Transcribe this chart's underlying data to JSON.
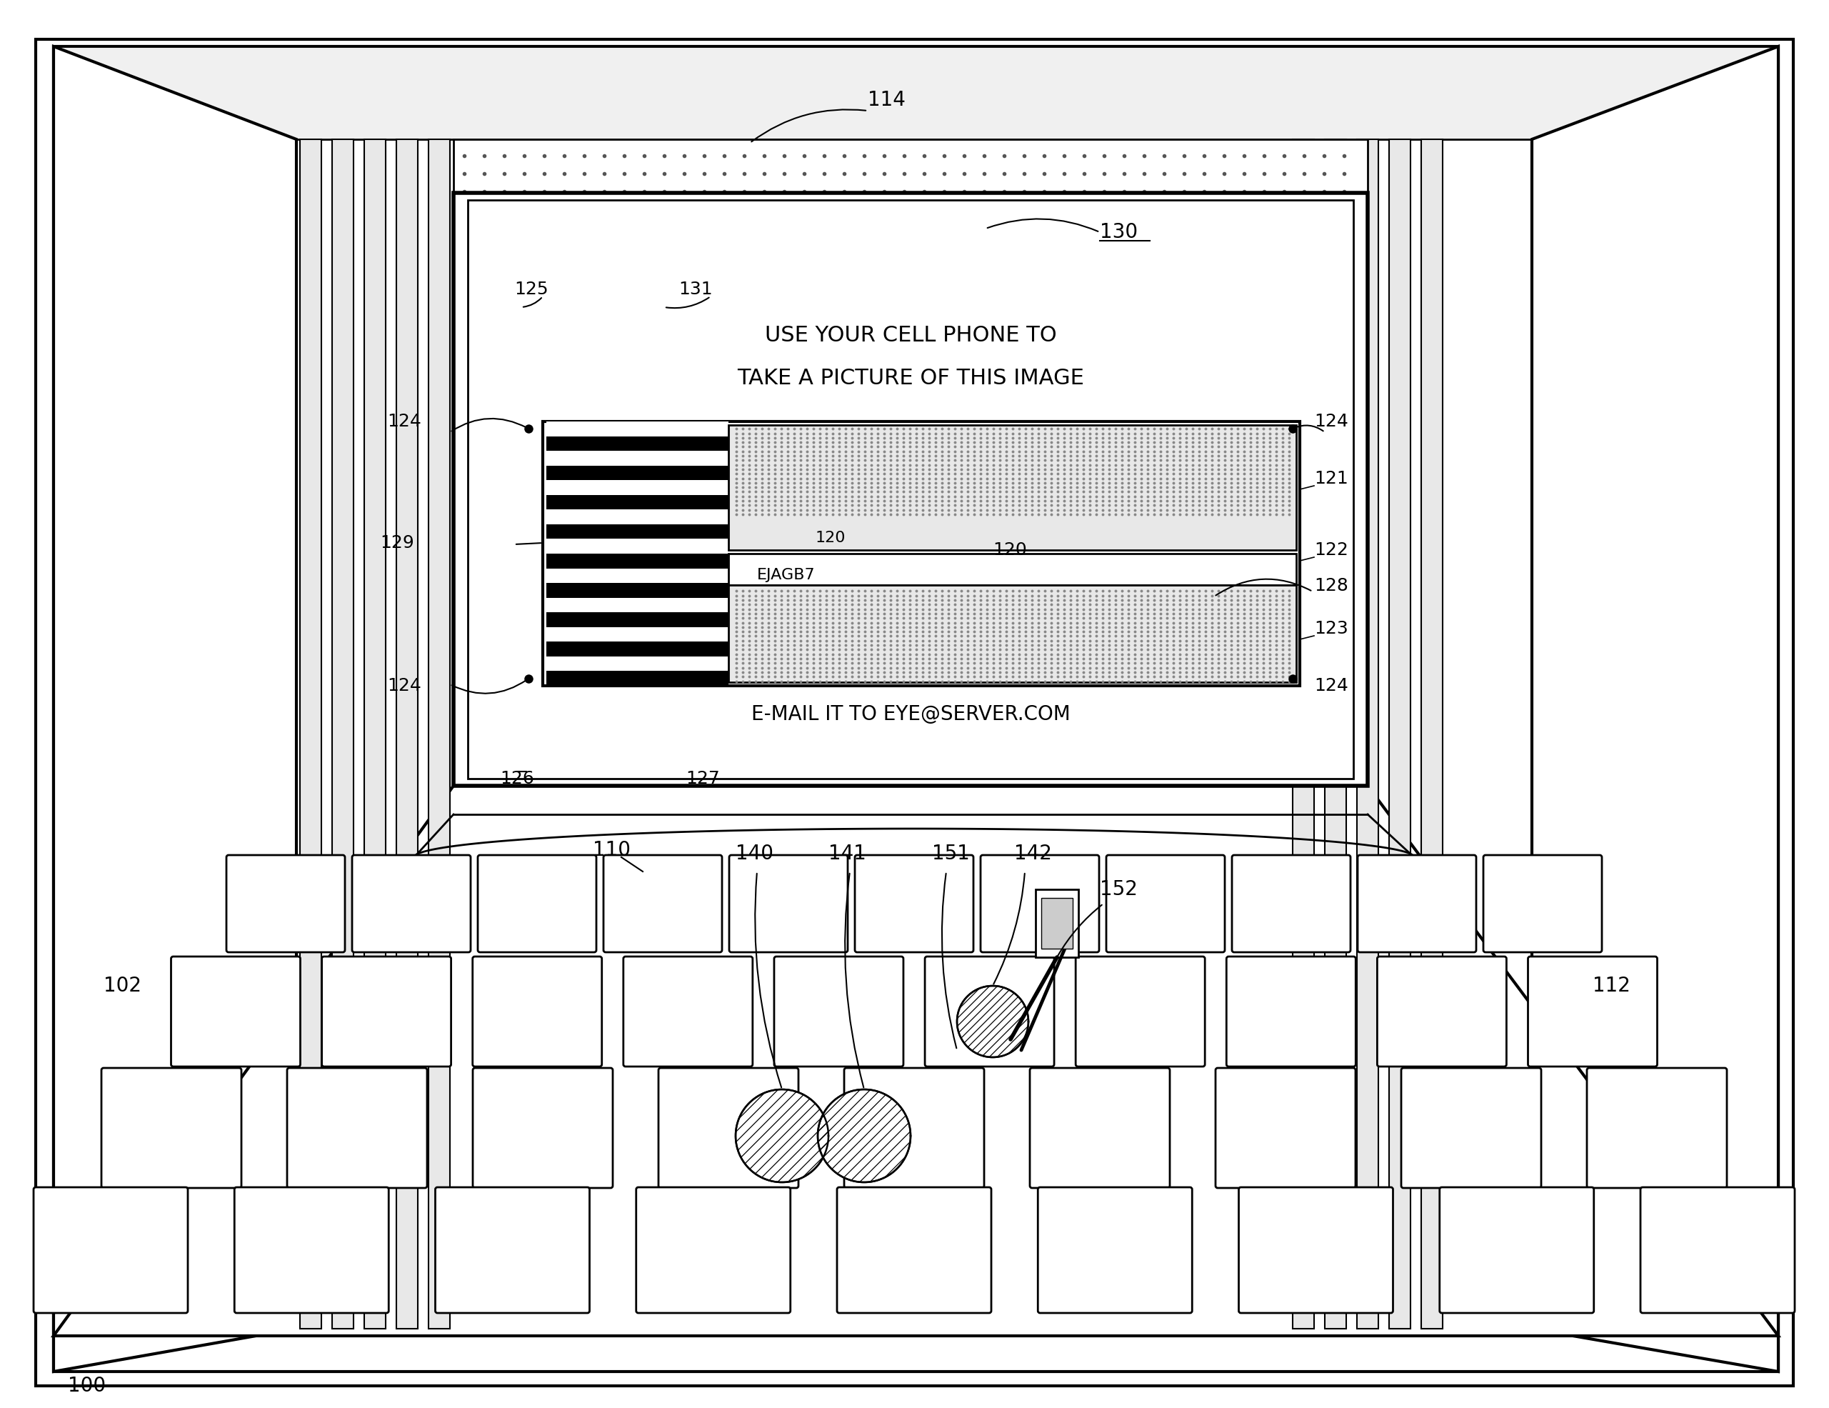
{
  "bg_color": "#ffffff",
  "black": "#000000",
  "screen_text1": "USE YOUR CELL PHONE TO",
  "screen_text2": "TAKE A PICTURE OF THIS IMAGE",
  "screen_text3": "E-MAIL IT TO EYE@SERVER.COM",
  "barcode_label": "120",
  "alphacode": "EJAGB7"
}
